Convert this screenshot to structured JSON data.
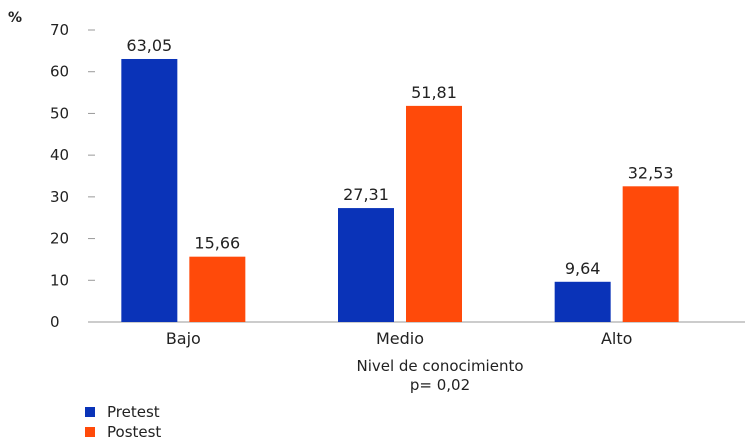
{
  "chart_data": {
    "type": "bar",
    "y_unit_label": "%",
    "categories": [
      "Bajo",
      "Medio",
      "Alto"
    ],
    "series": [
      {
        "name": "Pretest",
        "color": "#0a33b8",
        "values": [
          63.05,
          27.31,
          9.64
        ],
        "labels": [
          "63,05",
          "27,31",
          "9,64"
        ]
      },
      {
        "name": "Postest",
        "color": "#ff4a0a",
        "values": [
          15.66,
          51.81,
          32.53
        ],
        "labels": [
          "15,66",
          "51,81",
          "32,53"
        ]
      }
    ],
    "xlabel": "Nivel de conocimiento",
    "xlabel_note": "p= 0,02",
    "ylabel": "",
    "ylim": [
      0,
      70
    ],
    "yticks": [
      0,
      10,
      20,
      30,
      40,
      50,
      60,
      70
    ],
    "grid": false,
    "legend": "bottom-left"
  }
}
